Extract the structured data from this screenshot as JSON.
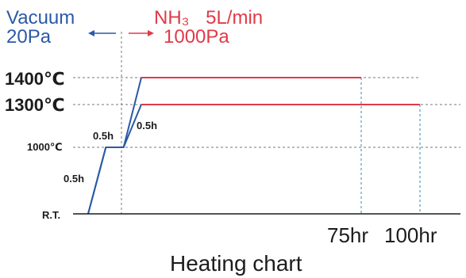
{
  "colors": {
    "vacuum": "#2a5aa6",
    "nitriding": "#e03a48",
    "vacuum_ref": "#2a8fb5",
    "grid": "#777777",
    "axis": "#1c1c1c"
  },
  "phases": {
    "vacuum": {
      "label": "Vacuum",
      "pressure": "20Pa"
    },
    "nitriding": {
      "gas": "NH₃",
      "flow": "5L/min",
      "pressure": "1000Pa"
    }
  },
  "chart_data": {
    "type": "line",
    "title": "Heating chart",
    "xlabel": "",
    "ylabel": "",
    "y_levels": [
      {
        "label": "R.T.",
        "value": 0
      },
      {
        "label": "1000℃",
        "value": 1000
      },
      {
        "label": "1300℃",
        "value": 1300
      },
      {
        "label": "1400℃",
        "value": 1400
      }
    ],
    "x_ticks": [
      "75hr",
      "100hr"
    ],
    "series": [
      {
        "name": "",
        "points": [
          {
            "t": 0,
            "temp": 0
          },
          {
            "t": 0.5,
            "temp": 1000
          },
          {
            "t": 1.0,
            "temp": 1000
          },
          {
            "t": 1.5,
            "temp": 1400
          },
          {
            "t": 75,
            "temp": 1400
          }
        ]
      },
      {
        "name": "",
        "points": [
          {
            "t": 0,
            "temp": 0
          },
          {
            "t": 0.5,
            "temp": 1000
          },
          {
            "t": 1.0,
            "temp": 1000
          },
          {
            "t": 1.5,
            "temp": 1300
          },
          {
            "t": 100,
            "temp": 1300
          }
        ]
      }
    ],
    "segment_labels": [
      "0.5h",
      "0.5h",
      "0.5h"
    ],
    "grid": true
  }
}
